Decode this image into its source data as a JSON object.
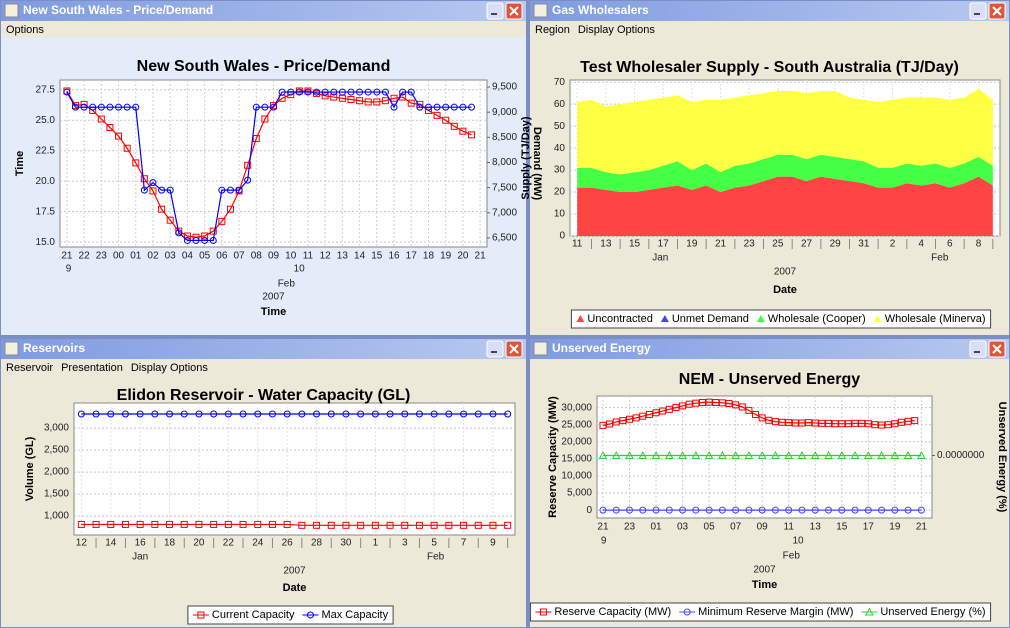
{
  "windows": [
    {
      "title": "New South Wales - Price/Demand",
      "menu": [
        "Options"
      ]
    },
    {
      "title": "Gas Wholesalers",
      "menu": [
        "Region",
        "Display Options"
      ]
    },
    {
      "title": "Reservoirs",
      "menu": [
        "Reservoir",
        "Presentation",
        "Display Options"
      ]
    },
    {
      "title": "Unserved Energy"
    }
  ],
  "chart_data": [
    {
      "type": "line",
      "title": "New South Wales - Price/Demand",
      "xlabel": "Time",
      "ylabel": "Time",
      "y2label": "Demand (MW)",
      "date_labels": [
        "9",
        "10"
      ],
      "month": "Feb",
      "year": "2007",
      "grid": true,
      "xlim": [
        -0.4,
        24.4
      ],
      "xticks": [
        {
          "value": 0,
          "label": "21"
        },
        {
          "value": 1,
          "label": "22"
        },
        {
          "value": 2,
          "label": "23"
        },
        {
          "value": 3,
          "label": "00"
        },
        {
          "value": 4,
          "label": "01"
        },
        {
          "value": 5,
          "label": "02"
        },
        {
          "value": 6,
          "label": "03"
        },
        {
          "value": 7,
          "label": "04"
        },
        {
          "value": 8,
          "label": "05"
        },
        {
          "value": 9,
          "label": "06"
        },
        {
          "value": 10,
          "label": "07"
        },
        {
          "value": 11,
          "label": "08"
        },
        {
          "value": 12,
          "label": "09"
        },
        {
          "value": 13,
          "label": "10"
        },
        {
          "value": 14,
          "label": "11"
        },
        {
          "value": 15,
          "label": "12"
        },
        {
          "value": 16,
          "label": "13"
        },
        {
          "value": 17,
          "label": "14"
        },
        {
          "value": 18,
          "label": "15"
        },
        {
          "value": 19,
          "label": "16"
        },
        {
          "value": 20,
          "label": "17"
        },
        {
          "value": 21,
          "label": "18"
        },
        {
          "value": 22,
          "label": "19"
        },
        {
          "value": 23,
          "label": "20"
        },
        {
          "value": 24,
          "label": "21"
        }
      ],
      "ylim": [
        14.6,
        28.3
      ],
      "yticks": [
        {
          "value": 15,
          "label": "15.0"
        },
        {
          "value": 17.5,
          "label": "17.5"
        },
        {
          "value": 20,
          "label": "20.0"
        },
        {
          "value": 22.5,
          "label": "22.5"
        },
        {
          "value": 25,
          "label": "25.0"
        },
        {
          "value": 27.5,
          "label": "27.5"
        }
      ],
      "y2lim": [
        6320,
        9640
      ],
      "y2ticks": [
        {
          "value": 6500,
          "label": "6,500"
        },
        {
          "value": 7000,
          "label": "7,000"
        },
        {
          "value": 7500,
          "label": "7,500"
        },
        {
          "value": 8000,
          "label": "8,000"
        },
        {
          "value": 8500,
          "label": "8,500"
        },
        {
          "value": 9000,
          "label": "9,000"
        },
        {
          "value": 9500,
          "label": "9,500"
        }
      ],
      "series": [
        {
          "color": "#ff0000",
          "marker": "square",
          "x": [
            0,
            0.5,
            1,
            1.5,
            2,
            2.5,
            3,
            3.5,
            4,
            4.5,
            5,
            5.5,
            6,
            6.5,
            7,
            7.5,
            8,
            8.5,
            9,
            9.5,
            10,
            10.5,
            11,
            11.5,
            12,
            12.5,
            13,
            13.5,
            14,
            14.5,
            15,
            15.5,
            16,
            16.5,
            17,
            17.5,
            18,
            18.5,
            19,
            19.5,
            20,
            20.5,
            21,
            21.5,
            22,
            22.5,
            23,
            23.5
          ],
          "values": [
            27.4,
            26.2,
            26.3,
            25.8,
            25.1,
            24.4,
            23.7,
            22.7,
            21.5,
            20.2,
            19.2,
            17.7,
            16.8,
            15.9,
            15.5,
            15.4,
            15.5,
            15.9,
            16.7,
            17.7,
            19.2,
            21.3,
            23.5,
            25.1,
            26.2,
            26.8,
            27.1,
            27.4,
            27.4,
            27.2,
            27.0,
            26.9,
            26.8,
            26.7,
            26.6,
            26.5,
            26.5,
            26.6,
            26.8,
            26.9,
            26.4,
            26.3,
            25.8,
            25.4,
            25.0,
            24.5,
            24.1,
            23.8
          ]
        },
        {
          "color": "#0000ff",
          "marker": "circle",
          "axis": "y2",
          "x": [
            0,
            0.5,
            1,
            1.5,
            2,
            2.5,
            3,
            3.5,
            4,
            4.5,
            5,
            5.5,
            6,
            6.5,
            7,
            7.5,
            8,
            8.5,
            9,
            9.5,
            10,
            10.5,
            11,
            11.5,
            12,
            12.5,
            13,
            13.5,
            14,
            14.5,
            15,
            15.5,
            16,
            16.5,
            17,
            17.5,
            18,
            18.5,
            19,
            19.5,
            20,
            20.5,
            21,
            21.5,
            22,
            22.5,
            23,
            23.5
          ],
          "values": [
            9400,
            9100,
            9100,
            9100,
            9100,
            9100,
            9100,
            9100,
            9100,
            7450,
            7600,
            7450,
            7450,
            6600,
            6450,
            6450,
            6450,
            6450,
            7450,
            7450,
            7450,
            7650,
            9100,
            9100,
            9100,
            9400,
            9400,
            9400,
            9400,
            9400,
            9400,
            9400,
            9400,
            9400,
            9400,
            9400,
            9400,
            9400,
            9100,
            9400,
            9400,
            9100,
            9100,
            9100,
            9100,
            9100,
            9100,
            9100
          ]
        }
      ]
    },
    {
      "type": "area",
      "stacked": true,
      "title": "Test Wholesaler Supply - South Australia (TJ/Day)",
      "xlabel": "Date",
      "ylabel": "Supply (TJ/Day)",
      "months": [
        "Jan",
        "Feb"
      ],
      "year": "2007",
      "grid": true,
      "legend": "bottom",
      "categories": [
        "11",
        null,
        "13",
        null,
        "15",
        null,
        "17",
        null,
        "19",
        null,
        "21",
        null,
        "23",
        null,
        "25",
        null,
        "27",
        null,
        "29",
        null,
        "31",
        null,
        "2",
        null,
        "4",
        null,
        "6",
        null,
        "8",
        null
      ],
      "ylim": [
        0,
        71
      ],
      "yticks": [
        0,
        10,
        20,
        30,
        40,
        50,
        60,
        70
      ],
      "series": [
        {
          "name": "Uncontracted",
          "color": "#ff4444",
          "values": [
            22,
            22,
            21,
            20,
            20,
            21,
            22,
            23,
            21,
            23,
            20,
            22,
            23,
            25,
            27,
            27,
            25,
            27,
            26,
            25,
            24,
            22,
            22,
            24,
            23,
            24,
            22,
            24,
            27,
            23
          ]
        },
        {
          "name": "Unmet Demand",
          "color": "#4444ff",
          "values": [
            0,
            0,
            0,
            0,
            0,
            0,
            0,
            0,
            0,
            0,
            0,
            0,
            0,
            0,
            0,
            0,
            0,
            0,
            0,
            0,
            0,
            0,
            0,
            0,
            0,
            0,
            0,
            0,
            0,
            0
          ]
        },
        {
          "name": "Wholesale (Cooper)",
          "color": "#44ff44",
          "values": [
            9,
            9,
            8,
            8,
            9,
            9,
            10,
            11,
            9,
            10,
            9,
            10,
            10,
            10,
            10,
            10,
            10,
            10,
            10,
            10,
            10,
            9,
            9,
            9,
            9,
            9,
            9,
            9,
            9,
            9
          ]
        },
        {
          "name": "Wholesale (Minerva)",
          "color": "#ffff44",
          "values": [
            30,
            31,
            30,
            32,
            32,
            32,
            31,
            30,
            31,
            29,
            33,
            31,
            31,
            30,
            29,
            29,
            30,
            29,
            30,
            28,
            28,
            30,
            31,
            30,
            31,
            30,
            31,
            30,
            31,
            30
          ]
        }
      ]
    },
    {
      "type": "line",
      "title": "Elidon Reservoir - Water Capacity (GL)",
      "xlabel": "Date",
      "ylabel": "Volume (GL)",
      "months": [
        "Jan",
        "Feb"
      ],
      "year": "2007",
      "grid": true,
      "legend": "bottom",
      "categories": [
        "12",
        null,
        "14",
        null,
        "16",
        null,
        "18",
        null,
        "20",
        null,
        "22",
        null,
        "24",
        null,
        "26",
        null,
        "28",
        null,
        "30",
        null,
        "1",
        null,
        "3",
        null,
        "5",
        null,
        "7",
        null,
        "9",
        null
      ],
      "ylim": [
        570,
        3570
      ],
      "yticks": [
        {
          "value": 1000,
          "label": "1,000"
        },
        {
          "value": 1500,
          "label": "1,500"
        },
        {
          "value": 2000,
          "label": "2,000"
        },
        {
          "value": 2500,
          "label": "2,500"
        },
        {
          "value": 3000,
          "label": "3,000"
        }
      ],
      "series": [
        {
          "name": "Current Capacity",
          "color": "#ff0000",
          "marker": "square",
          "values": [
            810,
            810,
            810,
            810,
            810,
            810,
            810,
            810,
            810,
            810,
            810,
            810,
            810,
            810,
            810,
            790,
            790,
            790,
            790,
            790,
            790,
            790,
            790,
            790,
            790,
            790,
            790,
            790,
            790,
            790
          ]
        },
        {
          "name": "Max Capacity",
          "color": "#0000ff",
          "marker": "circle",
          "values": [
            3320,
            3320,
            3320,
            3320,
            3320,
            3320,
            3320,
            3320,
            3320,
            3320,
            3320,
            3320,
            3320,
            3320,
            3320,
            3320,
            3320,
            3320,
            3320,
            3320,
            3320,
            3320,
            3320,
            3320,
            3320,
            3320,
            3320,
            3320,
            3320,
            3320
          ]
        }
      ]
    },
    {
      "type": "line",
      "title": "NEM - Unserved Energy",
      "xlabel": "Time",
      "ylabel": "Reserve Capacity (MW)",
      "y2label": "Unserved Energy (%)",
      "date_labels": [
        "9",
        "10"
      ],
      "month": "Feb",
      "year": "2007",
      "grid": true,
      "legend": "bottom",
      "xlim": [
        -0.45,
        24.8
      ],
      "xticks": [
        {
          "value": 0,
          "label": "21"
        },
        {
          "value": 2,
          "label": "23"
        },
        {
          "value": 4,
          "label": "01"
        },
        {
          "value": 6,
          "label": "03"
        },
        {
          "value": 8,
          "label": "05"
        },
        {
          "value": 10,
          "label": "07"
        },
        {
          "value": 12,
          "label": "09"
        },
        {
          "value": 14,
          "label": "11"
        },
        {
          "value": 16,
          "label": "13"
        },
        {
          "value": 18,
          "label": "15"
        },
        {
          "value": 20,
          "label": "17"
        },
        {
          "value": 22,
          "label": "19"
        },
        {
          "value": 24,
          "label": "21"
        }
      ],
      "ylim": [
        -2300,
        33400
      ],
      "yticks": [
        0,
        {
          "value": 5000,
          "label": "5,000"
        },
        {
          "value": 10000,
          "label": "10,000"
        },
        {
          "value": 15000,
          "label": "15,000"
        },
        {
          "value": 20000,
          "label": "20,000"
        },
        {
          "value": 25000,
          "label": "25,000"
        },
        {
          "value": 30000,
          "label": "30,000"
        }
      ],
      "y2lim": [
        -1.05,
        1
      ],
      "y2ticks": [
        {
          "value": 0,
          "label": "0.0000000"
        }
      ],
      "series": [
        {
          "name": "Reserve Capacity (MW)",
          "color": "#ff0000",
          "marker": "square",
          "x": [
            0,
            0.5,
            1,
            1.5,
            2,
            2.5,
            3,
            3.5,
            4,
            4.5,
            5,
            5.5,
            6,
            6.5,
            7,
            7.5,
            8,
            8.5,
            9,
            9.5,
            10,
            10.5,
            11,
            11.5,
            12,
            12.5,
            13,
            13.5,
            14,
            14.5,
            15,
            15.5,
            16,
            16.5,
            17,
            17.5,
            18,
            18.5,
            19,
            19.5,
            20,
            20.5,
            21,
            21.5,
            22,
            22.5,
            23,
            23.5
          ],
          "values": [
            24800,
            25200,
            25800,
            26200,
            26600,
            27000,
            27500,
            28000,
            28500,
            29000,
            29500,
            30000,
            30500,
            31000,
            31300,
            31500,
            31600,
            31500,
            31400,
            31200,
            30800,
            30200,
            29200,
            28000,
            27000,
            26300,
            25900,
            25700,
            25600,
            25500,
            25500,
            25600,
            25500,
            25400,
            25400,
            25300,
            25300,
            25300,
            25400,
            25400,
            25300,
            25000,
            24900,
            25000,
            25300,
            25700,
            26000,
            26200
          ]
        },
        {
          "name": "Minimum Reserve Margin (MW)",
          "color": "#4444ff",
          "marker": "circle",
          "x": [
            0,
            1,
            2,
            3,
            4,
            5,
            6,
            7,
            8,
            9,
            10,
            11,
            12,
            13,
            14,
            15,
            16,
            17,
            18,
            19,
            20,
            21,
            22,
            23,
            24
          ],
          "values": [
            0,
            0,
            0,
            0,
            0,
            0,
            0,
            0,
            0,
            0,
            0,
            0,
            0,
            0,
            0,
            0,
            0,
            0,
            0,
            0,
            0,
            0,
            0,
            0,
            0
          ]
        },
        {
          "name": "Unserved Energy (%)",
          "color": "#33cc33",
          "marker": "triangle",
          "axis": "y2",
          "x": [
            0,
            1,
            2,
            3,
            4,
            5,
            6,
            7,
            8,
            9,
            10,
            11,
            12,
            13,
            14,
            15,
            16,
            17,
            18,
            19,
            20,
            21,
            22,
            23,
            24
          ],
          "values": [
            0,
            0,
            0,
            0,
            0,
            0,
            0,
            0,
            0,
            0,
            0,
            0,
            0,
            0,
            0,
            0,
            0,
            0,
            0,
            0,
            0,
            0,
            0,
            0,
            0
          ]
        }
      ]
    }
  ]
}
